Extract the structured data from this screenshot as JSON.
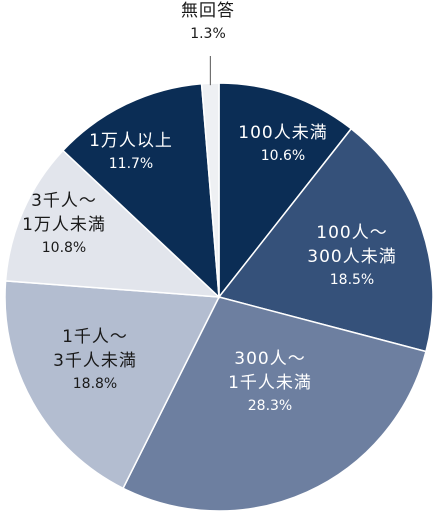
{
  "chart_data": {
    "type": "pie",
    "title": "",
    "start_angle_deg": 90,
    "direction": "clockwise",
    "slices": [
      {
        "label_lines": [
          "100人未満"
        ],
        "pct_text": "10.6%",
        "value": 10.6,
        "color": "#0b2d55",
        "text_color": "#ffffff"
      },
      {
        "label_lines": [
          "100人～",
          "300人未満"
        ],
        "pct_text": "18.5%",
        "value": 18.5,
        "color": "#35517a",
        "text_color": "#ffffff"
      },
      {
        "label_lines": [
          "300人～",
          "1千人未満"
        ],
        "pct_text": "28.3%",
        "value": 28.3,
        "color": "#6d7fa0",
        "text_color": "#ffffff"
      },
      {
        "label_lines": [
          "1千人～",
          "3千人未満"
        ],
        "pct_text": "18.8%",
        "value": 18.8,
        "color": "#b3bdd0",
        "text_color": "#1a1a1a"
      },
      {
        "label_lines": [
          "3千人～",
          "1万人未満"
        ],
        "pct_text": "10.8%",
        "value": 10.8,
        "color": "#e2e5ec",
        "text_color": "#1a1a1a"
      },
      {
        "label_lines": [
          "1万人以上"
        ],
        "pct_text": "11.7%",
        "value": 11.7,
        "color": "#0b2d55",
        "text_color": "#ffffff"
      },
      {
        "label_lines": [
          "無回答"
        ],
        "pct_text": "1.3%",
        "value": 1.3,
        "color": "#eef0f3",
        "text_color": "#1a1a1a",
        "outside_label": true
      }
    ]
  }
}
